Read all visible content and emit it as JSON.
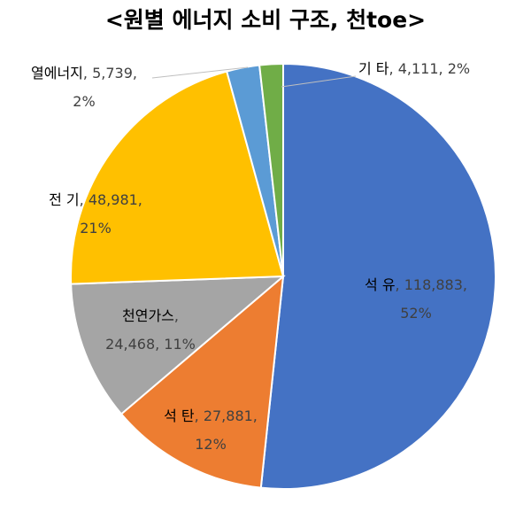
{
  "chart_data": {
    "type": "pie",
    "title": "<원별 에너지 소비 구조, 천toe>",
    "categories": [
      "석 유",
      "석 탄",
      "천연가스",
      "전 기",
      "열에너지",
      "기 타"
    ],
    "values": [
      118883,
      27881,
      24468,
      48981,
      5739,
      4111
    ],
    "value_labels": [
      "118,883",
      "27,881",
      "24,468",
      "48,981",
      "5,739",
      "4,111"
    ],
    "percents": [
      52,
      12,
      11,
      21,
      2,
      2
    ],
    "percent_labels": [
      "52%",
      "12%",
      "11%",
      "21%",
      "2%",
      "2%"
    ],
    "label_separator": ", ",
    "colors": [
      "#4472c4",
      "#ed7d31",
      "#a5a5a5",
      "#ffc000",
      "#5b9bd5",
      "#70ad47"
    ]
  }
}
